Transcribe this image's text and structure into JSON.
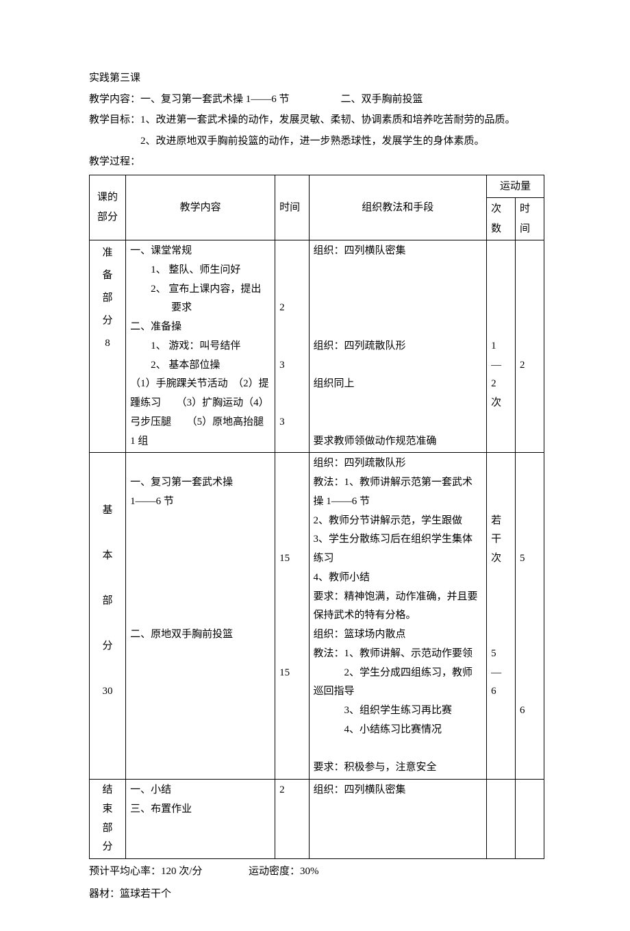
{
  "title": "实践第三课",
  "teaching_content_label": "教学内容：",
  "teaching_content_1": "一、复习第一套武术操 1——6 节",
  "teaching_content_2": "二、双手胸前投篮",
  "teaching_goal_label": "教学目标：",
  "teaching_goal_1": "1、改进第一套武术操的动作，发展灵敏、柔韧、协调素质和培养吃苦耐劳的品质。",
  "teaching_goal_2": "2、改进原地双手胸前投篮的动作，进一步熟悉球性，发展学生的身体素质。",
  "teaching_process_label": "教学过程：",
  "table": {
    "headers": {
      "part": "课的部分",
      "content": "教学内容",
      "time": "时间",
      "method": "组织教法和手段",
      "volume": "运动量",
      "count": "次数",
      "duration": "时间"
    },
    "rows": [
      {
        "part_lines": [
          "准",
          "备",
          "部",
          "分",
          "8"
        ],
        "content_html": "一、课堂常规<br><span class='indent'>1、 整队、师生问好</span><br><span class='indent'>2、 宣布上课内容，提出</span><br><span class='indent-more'>要求</span><br>二、准备操<br><span class='indent'>1、 游戏：叫号结伴</span><br><span class='indent'>2、 基本部位操</span><br>（1）手腕踝关节活动　（2）提踵练习　　（3）扩胸运动（4）弓步压腿　　（5）原地高抬腿 1 组",
        "time_html": "<br><br><br>2<br><br><br>3<br><br><br>3",
        "method_html": "组织：四列横队密集<br><br><br><br><br>组织：四列疏散队形<br><br>组织同上<br><br><br>要求教师领做动作规范准确",
        "count_html": "<br><br><br><br><br>1<br>—<br>2<br>次",
        "duration_html": "<br><br><br><br><br><br>2"
      },
      {
        "part_lines": [
          "",
          "",
          "基",
          "",
          "本",
          "",
          "部",
          "",
          "分",
          "",
          "30"
        ],
        "content_html": "<br>一、复习第一套武术操<br>1——6 节<br><br><br><br><br><br><br>二、原地双手胸前投篮",
        "time_html": "<br><br><br><br><br>15<br><br><br><br><br><br>15",
        "method_html": "组织：四列疏散队形<br>教法：1、教师讲解示范第一套武术操 1——6 节<br>2、教师分节讲解示范，学生跟做<br>3、学生分散练习后在组织学生集体练习<br>4、教师小结<br>要求：精神饱满，动作准确，并且要保持武术的特有分格。<br>组织：篮球场内散点<br>教法：1、教师讲解、示范动作要领<br>　　　2、学生分成四组练习，教师巡回指导<br>　　　3、组织学生练习再比赛<br>　　　4、小结练习比赛情况<br><br>要求：积极参与，注意安全",
        "count_html": "<br><br><br>若<br>干<br>次<br><br><br><br><br>5<br>—<br>6",
        "duration_html": "<br><br><br><br><br>5<br><br><br><br><br><br><br><br>6"
      },
      {
        "part_lines": [
          "结",
          "束",
          "部",
          "分"
        ],
        "content_html": "一、小结<br>三、布置作业",
        "time_html": "2",
        "method_html": "组织：四列横队密集",
        "count_html": "",
        "duration_html": ""
      }
    ]
  },
  "footer_1a": "预计平均心率：120 次/分",
  "footer_1b": "运动密度：30%",
  "footer_2": "器材：篮球若干个"
}
